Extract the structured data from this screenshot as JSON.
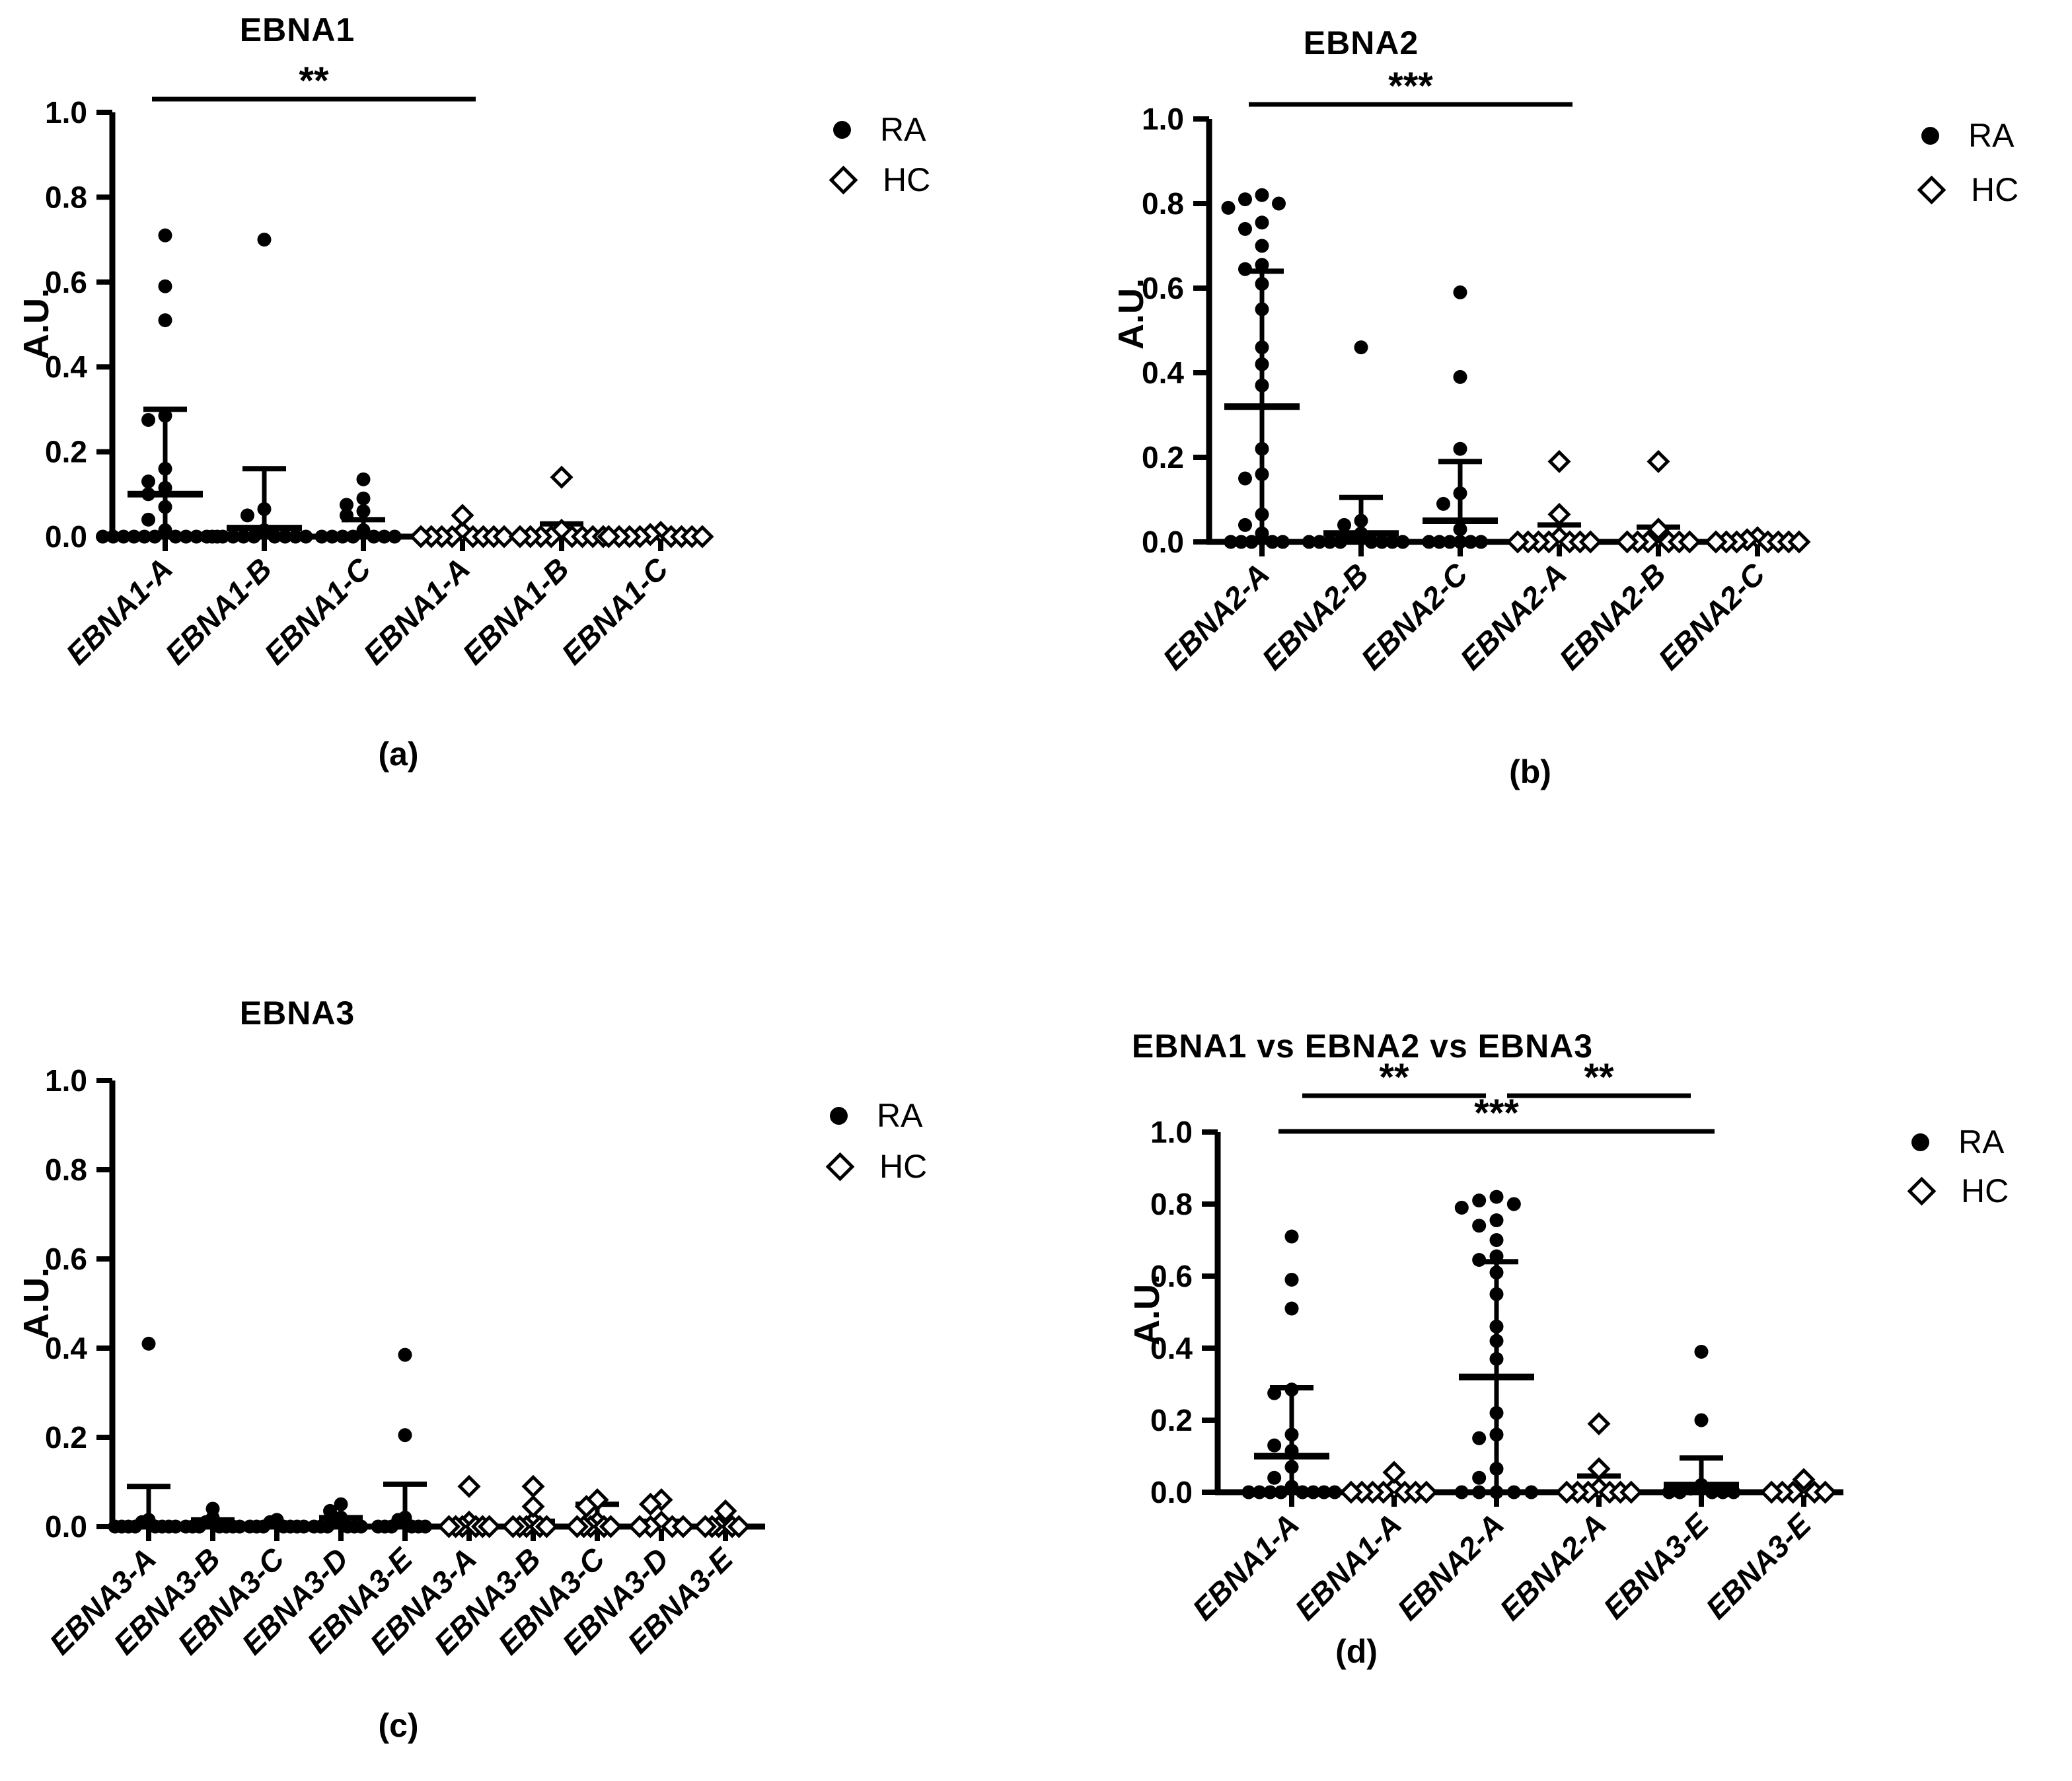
{
  "figure": {
    "description": "Dot plots of antibody reactivity (A.U.) against EBNA peptides in RA patients (filled circles) and healthy controls HC (open diamonds)"
  },
  "chart_data": [
    {
      "id": "a",
      "type": "scatter",
      "title": "EBNA1",
      "ylabel": "A.U.",
      "ylim": [
        0,
        1.0
      ],
      "yticks": [
        0.0,
        0.2,
        0.4,
        0.6,
        0.8,
        1.0
      ],
      "caption": "(a)",
      "legend": [
        {
          "label": "RA",
          "marker": "filled-circle"
        },
        {
          "label": "HC",
          "marker": "open-diamond"
        }
      ],
      "significance": [
        {
          "from": 0,
          "to": 3,
          "label": "**",
          "row": 0
        }
      ],
      "groups": [
        {
          "label": "EBNA1-A",
          "cohort": "RA",
          "marker": "filled-circle",
          "points": [
            0.71,
            0.59,
            0.51,
            0.285,
            0.275,
            0.16,
            0.13,
            0.115,
            0.1,
            0.07,
            0.04,
            0.015,
            0,
            0,
            0,
            0,
            0,
            0,
            0,
            0,
            0,
            0,
            0
          ],
          "median": 0.1,
          "whisker": 0.3
        },
        {
          "label": "EBNA1-B",
          "cohort": "RA",
          "marker": "filled-circle",
          "points": [
            0.7,
            0.065,
            0.05,
            0.015,
            0,
            0,
            0,
            0,
            0,
            0,
            0,
            0,
            0
          ],
          "median": 0.02,
          "whisker": 0.16
        },
        {
          "label": "EBNA1-C",
          "cohort": "RA",
          "marker": "filled-circle",
          "points": [
            0.135,
            0.09,
            0.075,
            0.06,
            0.05,
            0.015,
            0,
            0,
            0,
            0,
            0,
            0,
            0
          ],
          "median": 0.015,
          "whisker": 0.04
        },
        {
          "label": "EBNA1-A",
          "cohort": "HC",
          "marker": "open-diamond",
          "points": [
            0.05,
            0.01,
            0,
            0,
            0,
            0,
            0,
            0,
            0,
            0
          ],
          "median": 0,
          "whisker": 0
        },
        {
          "label": "EBNA1-B",
          "cohort": "HC",
          "marker": "open-diamond",
          "points": [
            0.14,
            0.015,
            0,
            0,
            0,
            0,
            0,
            0,
            0,
            0
          ],
          "median": 0.005,
          "whisker": 0.03
        },
        {
          "label": "EBNA1-C",
          "cohort": "HC",
          "marker": "open-diamond",
          "points": [
            0.01,
            0.005,
            0,
            0,
            0,
            0,
            0,
            0,
            0,
            0
          ],
          "median": 0,
          "whisker": 0
        }
      ]
    },
    {
      "id": "b",
      "type": "scatter",
      "title": "EBNA2",
      "ylabel": "A.U.",
      "ylim": [
        0,
        1.0
      ],
      "yticks": [
        0.0,
        0.2,
        0.4,
        0.6,
        0.8,
        1.0
      ],
      "caption": "(b)",
      "legend": [
        {
          "label": "RA",
          "marker": "filled-circle"
        },
        {
          "label": "HC",
          "marker": "open-diamond"
        }
      ],
      "significance": [
        {
          "from": 0,
          "to": 3,
          "label": "***",
          "row": 0
        }
      ],
      "groups": [
        {
          "label": "EBNA2-A",
          "cohort": "RA",
          "marker": "filled-circle",
          "points": [
            0.82,
            0.81,
            0.8,
            0.79,
            0.755,
            0.74,
            0.7,
            0.655,
            0.645,
            0.61,
            0.55,
            0.46,
            0.42,
            0.37,
            0.22,
            0.16,
            0.15,
            0.065,
            0.04,
            0.02,
            0,
            0,
            0,
            0,
            0
          ],
          "median": 0.32,
          "whisker": 0.64
        },
        {
          "label": "EBNA2-B",
          "cohort": "RA",
          "marker": "filled-circle",
          "points": [
            0.46,
            0.05,
            0.04,
            0.02,
            0.01,
            0,
            0,
            0,
            0,
            0,
            0,
            0,
            0
          ],
          "median": 0.02,
          "whisker": 0.105
        },
        {
          "label": "EBNA2-C",
          "cohort": "RA",
          "marker": "filled-circle",
          "points": [
            0.59,
            0.39,
            0.22,
            0.115,
            0.09,
            0.03,
            0,
            0,
            0,
            0,
            0,
            0
          ],
          "median": 0.05,
          "whisker": 0.19
        },
        {
          "label": "EBNA2-A",
          "cohort": "HC",
          "marker": "open-diamond",
          "points": [
            0.19,
            0.065,
            0.01,
            0,
            0,
            0,
            0,
            0,
            0,
            0
          ],
          "median": 0.005,
          "whisker": 0.04
        },
        {
          "label": "EBNA2-B",
          "cohort": "HC",
          "marker": "open-diamond",
          "points": [
            0.19,
            0.03,
            0.01,
            0,
            0,
            0,
            0,
            0,
            0
          ],
          "median": 0.005,
          "whisker": 0.035
        },
        {
          "label": "EBNA2-C",
          "cohort": "HC",
          "marker": "open-diamond",
          "points": [
            0.01,
            0.005,
            0,
            0,
            0,
            0,
            0,
            0,
            0
          ],
          "median": 0,
          "whisker": 0
        }
      ]
    },
    {
      "id": "c",
      "type": "scatter",
      "title": "EBNA3",
      "ylabel": "A.U.",
      "ylim": [
        0,
        1.0
      ],
      "yticks": [
        0.0,
        0.2,
        0.4,
        0.6,
        0.8,
        1.0
      ],
      "caption": "(c)",
      "legend": [
        {
          "label": "RA",
          "marker": "filled-circle"
        },
        {
          "label": "HC",
          "marker": "open-diamond"
        }
      ],
      "significance": [],
      "groups": [
        {
          "label": "EBNA3-A",
          "cohort": "RA",
          "marker": "filled-circle",
          "points": [
            0.41,
            0.015,
            0.01,
            0,
            0,
            0,
            0,
            0,
            0,
            0,
            0
          ],
          "median": 0.008,
          "whisker": 0.09
        },
        {
          "label": "EBNA3-B",
          "cohort": "RA",
          "marker": "filled-circle",
          "points": [
            0.04,
            0.02,
            0.01,
            0,
            0,
            0,
            0,
            0,
            0,
            0
          ],
          "median": 0.005,
          "whisker": 0.015
        },
        {
          "label": "EBNA3-C",
          "cohort": "RA",
          "marker": "filled-circle",
          "points": [
            0.015,
            0.01,
            0,
            0,
            0,
            0,
            0,
            0,
            0
          ],
          "median": 0.004,
          "whisker": 0.01
        },
        {
          "label": "EBNA3-D",
          "cohort": "RA",
          "marker": "filled-circle",
          "points": [
            0.05,
            0.035,
            0.02,
            0.01,
            0,
            0,
            0,
            0,
            0,
            0
          ],
          "median": 0.006,
          "whisker": 0.02
        },
        {
          "label": "EBNA3-E",
          "cohort": "RA",
          "marker": "filled-circle",
          "points": [
            0.385,
            0.205,
            0.02,
            0.015,
            0,
            0,
            0,
            0,
            0,
            0
          ],
          "median": 0.015,
          "whisker": 0.095
        },
        {
          "label": "EBNA3-A",
          "cohort": "HC",
          "marker": "open-diamond",
          "points": [
            0.09,
            0.01,
            0,
            0,
            0,
            0,
            0,
            0
          ],
          "median": 0,
          "whisker": 0.012
        },
        {
          "label": "EBNA3-B",
          "cohort": "HC",
          "marker": "open-diamond",
          "points": [
            0.09,
            0.045,
            0.01,
            0,
            0,
            0,
            0,
            0
          ],
          "median": 0,
          "whisker": 0.012
        },
        {
          "label": "EBNA3-C",
          "cohort": "HC",
          "marker": "open-diamond",
          "points": [
            0.06,
            0.045,
            0.01,
            0,
            0,
            0,
            0,
            0
          ],
          "median": 0.005,
          "whisker": 0.05
        },
        {
          "label": "EBNA3-D",
          "cohort": "HC",
          "marker": "open-diamond",
          "points": [
            0.06,
            0.05,
            0.01,
            0,
            0,
            0,
            0
          ],
          "median": 0.005,
          "whisker": 0.012
        },
        {
          "label": "EBNA3-E",
          "cohort": "HC",
          "marker": "open-diamond",
          "points": [
            0.035,
            0.01,
            0,
            0,
            0,
            0,
            0
          ],
          "median": 0,
          "whisker": 0.01
        }
      ]
    },
    {
      "id": "d",
      "type": "scatter",
      "title": "EBNA1 vs EBNA2 vs EBNA3",
      "ylabel": "A.U.",
      "ylim": [
        0,
        1.0
      ],
      "yticks": [
        0.0,
        0.2,
        0.4,
        0.6,
        0.8,
        1.0
      ],
      "caption": "(d)",
      "legend": [
        {
          "label": "RA",
          "marker": "filled-circle"
        },
        {
          "label": "HC",
          "marker": "open-diamond"
        }
      ],
      "significance": [
        {
          "from": 0,
          "to": 2,
          "label": "**",
          "row": 0
        },
        {
          "from": 2,
          "to": 4,
          "label": "**",
          "row": 0
        },
        {
          "from": 0,
          "to": 4,
          "label": "***",
          "row": 1
        }
      ],
      "groups": [
        {
          "label": "EBNA1-A",
          "cohort": "RA",
          "marker": "filled-circle",
          "points": [
            0.71,
            0.59,
            0.51,
            0.285,
            0.275,
            0.16,
            0.13,
            0.115,
            0.07,
            0.04,
            0.015,
            0,
            0,
            0,
            0,
            0,
            0,
            0,
            0
          ],
          "median": 0.1,
          "whisker": 0.29
        },
        {
          "label": "EBNA1-A",
          "cohort": "HC",
          "marker": "open-diamond",
          "points": [
            0.055,
            0.01,
            0,
            0,
            0,
            0,
            0,
            0,
            0
          ],
          "median": 0,
          "whisker": 0
        },
        {
          "label": "EBNA2-A",
          "cohort": "RA",
          "marker": "filled-circle",
          "points": [
            0.82,
            0.81,
            0.8,
            0.79,
            0.755,
            0.74,
            0.7,
            0.655,
            0.645,
            0.61,
            0.55,
            0.46,
            0.42,
            0.37,
            0.22,
            0.16,
            0.15,
            0.065,
            0.04,
            0,
            0,
            0,
            0,
            0
          ],
          "median": 0.32,
          "whisker": 0.64
        },
        {
          "label": "EBNA2-A",
          "cohort": "HC",
          "marker": "open-diamond",
          "points": [
            0.19,
            0.065,
            0.01,
            0,
            0,
            0,
            0,
            0,
            0
          ],
          "median": 0.005,
          "whisker": 0.045
        },
        {
          "label": "EBNA3-E",
          "cohort": "RA",
          "marker": "filled-circle",
          "points": [
            0.39,
            0.2,
            0.02,
            0.01,
            0,
            0,
            0,
            0,
            0
          ],
          "median": 0.02,
          "whisker": 0.095
        },
        {
          "label": "EBNA3-E",
          "cohort": "HC",
          "marker": "open-diamond",
          "points": [
            0.035,
            0.01,
            0,
            0,
            0,
            0,
            0
          ],
          "median": 0,
          "whisker": 0.01
        }
      ]
    }
  ]
}
